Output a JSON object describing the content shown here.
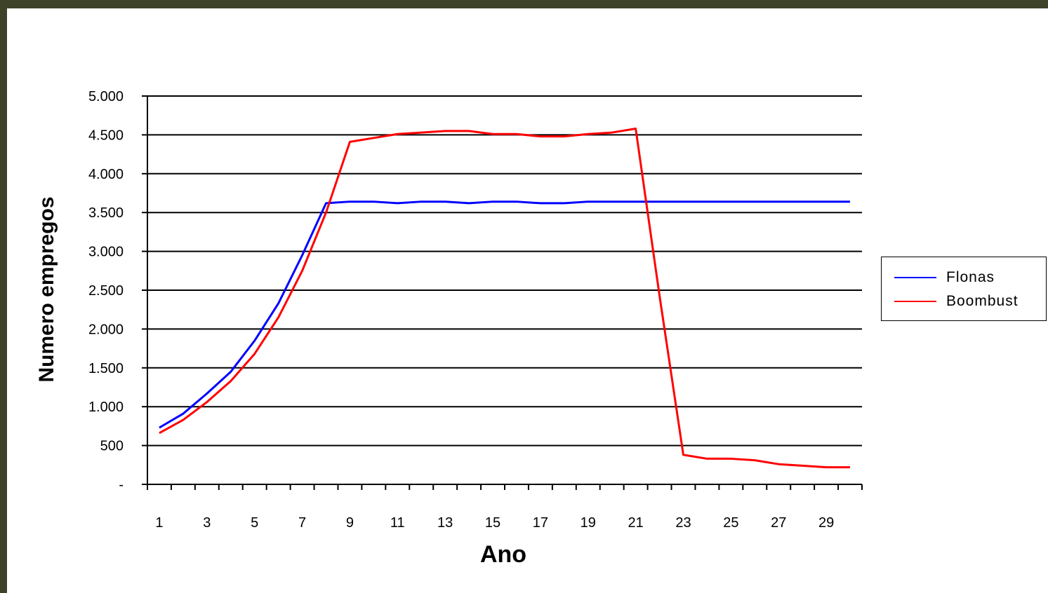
{
  "chart_data": {
    "type": "line",
    "title": "",
    "xlabel": "Ano",
    "ylabel": "Numero empregos",
    "ylim": [
      0,
      5000
    ],
    "y_ticks": [
      "-",
      "500",
      "1.000",
      "1.500",
      "2.000",
      "2.500",
      "3.000",
      "3.500",
      "4.000",
      "4.500",
      "5.000"
    ],
    "y_tick_values": [
      0,
      500,
      1000,
      1500,
      2000,
      2500,
      3000,
      3500,
      4000,
      4500,
      5000
    ],
    "x": [
      1,
      2,
      3,
      4,
      5,
      6,
      7,
      8,
      9,
      10,
      11,
      12,
      13,
      14,
      15,
      16,
      17,
      18,
      19,
      20,
      21,
      22,
      23,
      24,
      25,
      26,
      27,
      28,
      29,
      30
    ],
    "x_tick_labels": [
      "1",
      "3",
      "5",
      "7",
      "9",
      "11",
      "13",
      "15",
      "17",
      "19",
      "21",
      "23",
      "25",
      "27",
      "29"
    ],
    "grid": true,
    "legend_position": "right",
    "series": [
      {
        "name": "Flonas",
        "color": "#0000ff",
        "values": [
          730,
          910,
          1170,
          1450,
          1850,
          2330,
          2950,
          3620,
          3640,
          3640,
          3620,
          3640,
          3640,
          3620,
          3640,
          3640,
          3620,
          3620,
          3640,
          3640,
          3640,
          3640,
          3640,
          3640,
          3640,
          3640,
          3640,
          3640,
          3640,
          3640
        ]
      },
      {
        "name": "Boombust",
        "color": "#ff0000",
        "values": [
          660,
          830,
          1060,
          1330,
          1680,
          2150,
          2750,
          3500,
          4410,
          4460,
          4510,
          4530,
          4550,
          4550,
          4510,
          4510,
          4480,
          4480,
          4510,
          4530,
          4580,
          2430,
          380,
          330,
          330,
          310,
          260,
          240,
          220,
          220
        ]
      }
    ]
  }
}
